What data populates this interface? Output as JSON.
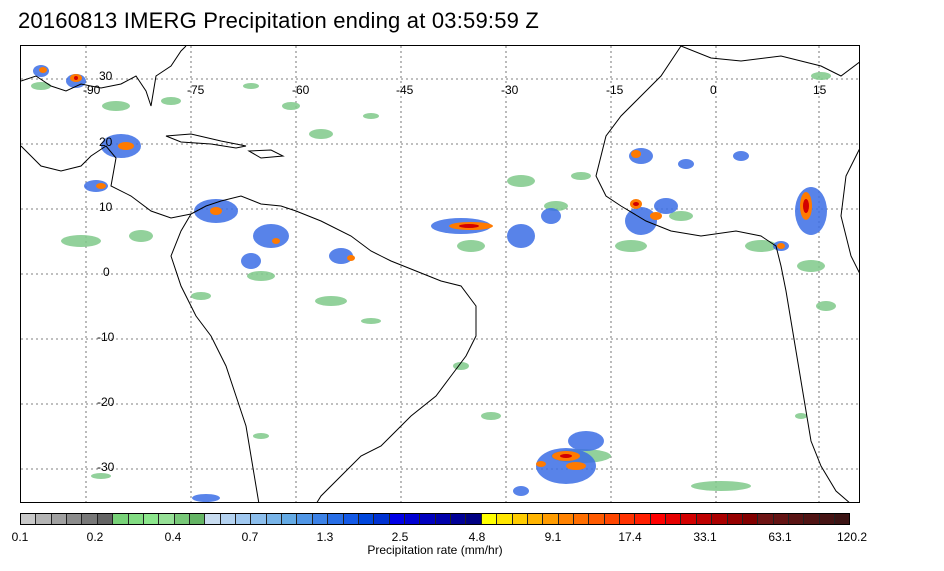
{
  "title": "20160813 IMERG Precipitation ending at 03:59:59 Z",
  "map": {
    "lon_labels": [
      "-90",
      "-75",
      "-60",
      "-45",
      "-30",
      "-15",
      "0",
      "15"
    ],
    "lat_labels": [
      "30",
      "20",
      "10",
      "0",
      "-10",
      "-20",
      "-30"
    ],
    "coastline_color": "#000000",
    "gridline_color": "#555555"
  },
  "colorbar": {
    "title": "Precipitation rate (mm/hr)",
    "tick_labels": [
      "0.1",
      "0.2",
      "0.4",
      "0.7",
      "1.3",
      "2.5",
      "4.8",
      "9.1",
      "17.4",
      "33.1",
      "63.1",
      "120.2"
    ],
    "colors": [
      "#c8c8c8",
      "#b4b4b4",
      "#a0a0a0",
      "#8c8c8c",
      "#787878",
      "#646464",
      "#78d278",
      "#82dc82",
      "#8ce68c",
      "#96e096",
      "#78c878",
      "#64b464",
      "#c8dcf0",
      "#b4d2f0",
      "#a0c8f0",
      "#8cbeec",
      "#78b4e8",
      "#64aae4",
      "#5096e6",
      "#3c82e6",
      "#286ee6",
      "#145ae6",
      "#0046dc",
      "#0032d2",
      "#0000e6",
      "#0000d2",
      "#0000be",
      "#0000aa",
      "#000096",
      "#000082",
      "#ffff00",
      "#ffe600",
      "#ffcc00",
      "#ffb400",
      "#ff9c00",
      "#ff8200",
      "#ff6e00",
      "#ff5a00",
      "#ff4600",
      "#ff3200",
      "#ff1e00",
      "#ff0000",
      "#e60000",
      "#d20000",
      "#be0000",
      "#aa0000",
      "#960000",
      "#820000",
      "#6e1414",
      "#641414",
      "#5a1414",
      "#501414",
      "#461414",
      "#3c1414"
    ]
  }
}
